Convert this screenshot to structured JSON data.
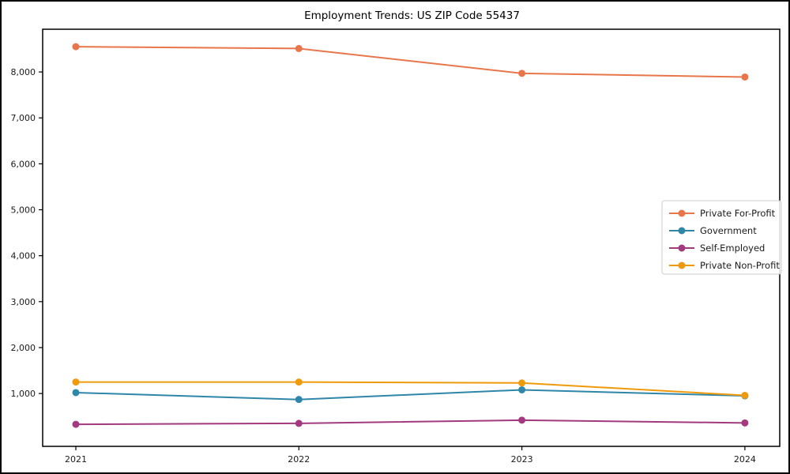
{
  "figure_title": "Employment Trends: US ZIP Code 55437",
  "chart_data": {
    "type": "line",
    "title": "Employment Trends: US ZIP Code 55437",
    "xlabel": "",
    "ylabel": "",
    "x": [
      "2021",
      "2022",
      "2023",
      "2024"
    ],
    "series": [
      {
        "name": "Private For-Profit",
        "color": "#e8764a",
        "values": [
          8550,
          8510,
          7970,
          7890
        ]
      },
      {
        "name": "Government",
        "color": "#2e86a8",
        "values": [
          1020,
          870,
          1080,
          950
        ]
      },
      {
        "name": "Self-Employed",
        "color": "#a23a7d",
        "values": [
          330,
          350,
          420,
          360
        ]
      },
      {
        "name": "Private Non-Profit",
        "color": "#ef9a0d",
        "values": [
          1250,
          1250,
          1230,
          960
        ]
      }
    ],
    "ylim": [
      -150,
      8930
    ],
    "yticks": [
      1000,
      2000,
      3000,
      4000,
      5000,
      6000,
      7000,
      8000
    ],
    "ytick_labels": [
      "1,000",
      "2,000",
      "3,000",
      "4,000",
      "5,000",
      "6,000",
      "7,000",
      "8,000"
    ],
    "grid": false,
    "legend": {
      "position": "center right",
      "entries": [
        "Private For-Profit",
        "Government",
        "Self-Employed",
        "Private Non-Profit"
      ]
    },
    "axis_color": "#000000",
    "tick_label_color": "#1a1a1a"
  }
}
